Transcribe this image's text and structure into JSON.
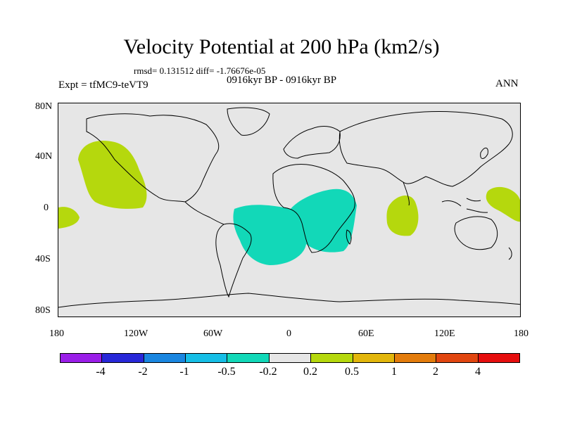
{
  "header": {
    "title": "Velocity Potential at 200 hPa (km2/s)",
    "stats": "rmsd= 0.131512 diff= -1.76676e-05",
    "experiment": "Expt = tfMC9-teVT9",
    "period": "0916kyr BP - 0916kyr BP",
    "season": "ANN"
  },
  "map": {
    "lat_labels": [
      "80N",
      "40N",
      "0",
      "40S",
      "80S"
    ],
    "lon_labels": [
      "180",
      "120W",
      "60W",
      "0",
      "60E",
      "120E",
      "180"
    ],
    "regions": [
      {
        "name": "north-pacific-positive",
        "category": "0.2 to 0.5",
        "color": "#b5d80d"
      },
      {
        "name": "east-pacific-positive",
        "category": "0.2 to 0.5",
        "color": "#b5d80d"
      },
      {
        "name": "south-atlantic-africa-negative",
        "category": "-0.5 to -0.2",
        "color": "#12d8b8"
      },
      {
        "name": "indian-ocean-positive",
        "category": "0.2 to 0.5",
        "color": "#b5d80d"
      },
      {
        "name": "west-pacific-positive",
        "category": "0.2 to 0.5",
        "color": "#b5d80d"
      }
    ]
  },
  "colorbar": {
    "colors": [
      "#9a1ee8",
      "#2828d8",
      "#1a86e0",
      "#16bee6",
      "#12d8b8",
      "#e6e6e6",
      "#b5d80d",
      "#e2b60c",
      "#e37c0c",
      "#e14610",
      "#e60e0e"
    ],
    "labels": [
      "-4",
      "-2",
      "-1",
      "-0.5",
      "-0.2",
      "0.2",
      "0.5",
      "1",
      "2",
      "4"
    ]
  }
}
